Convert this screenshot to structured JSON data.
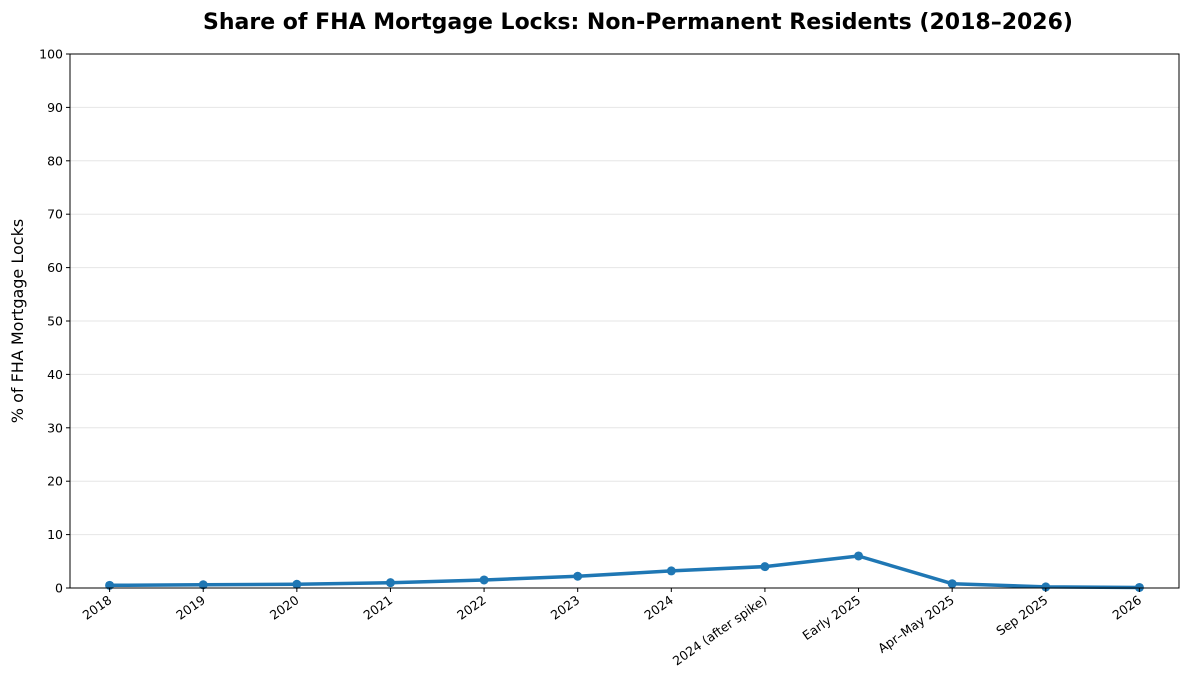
{
  "chart_data": {
    "type": "line",
    "title": "Share of FHA Mortgage Locks: Non-Permanent Residents (2018–2026)",
    "xlabel": "",
    "ylabel": "% of FHA Mortgage Locks",
    "categories": [
      "2018",
      "2019",
      "2020",
      "2021",
      "2022",
      "2023",
      "2024",
      "2024 (after spike)",
      "Early 2025",
      "Apr–May 2025",
      "Sep 2025",
      "2026"
    ],
    "series": [
      {
        "values": [
          0.5,
          0.6,
          0.7,
          1.0,
          1.5,
          2.2,
          3.2,
          4.0,
          6.0,
          0.8,
          0.2,
          0.1
        ]
      }
    ],
    "ylim": [
      0,
      100
    ],
    "yticks": [
      "0",
      "10",
      "20",
      "30",
      "40",
      "50",
      "60",
      "70",
      "80",
      "90",
      "100"
    ],
    "grid": "horizontal",
    "line_color": "#1f77b4",
    "grid_color": "#e6e6e6"
  }
}
